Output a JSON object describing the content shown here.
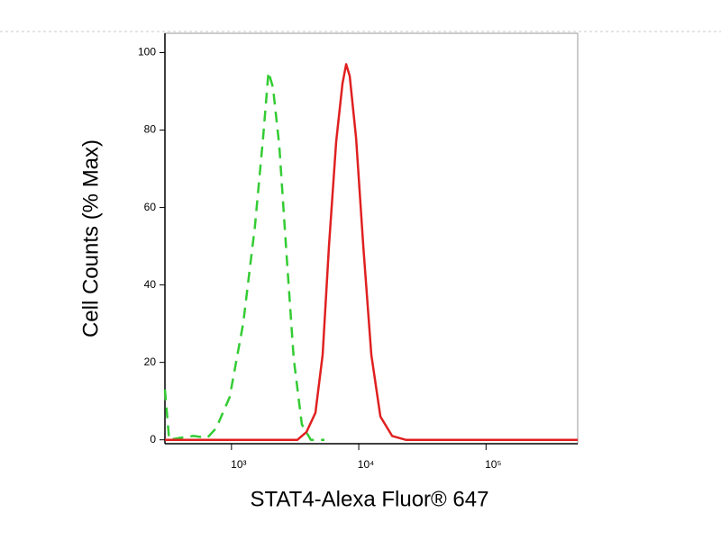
{
  "chart_data": {
    "type": "line",
    "xlabel": "STAT4-Alexa Fluor® 647",
    "ylabel": "Cell Counts (% Max)",
    "xscale": "log",
    "xlim": [
      300,
      525000
    ],
    "ylim": [
      -1,
      105
    ],
    "xticks": [
      {
        "value": 1000,
        "label": "10³"
      },
      {
        "value": 10000,
        "label": "10⁴"
      },
      {
        "value": 100000,
        "label": "10⁵"
      }
    ],
    "yticks": [
      0,
      20,
      40,
      60,
      80,
      100
    ],
    "series": [
      {
        "color": "#33cc33",
        "dashed": true,
        "x": [
          300,
          324,
          394,
          503,
          644,
          757,
          968,
          1236,
          1528,
          1770,
          1953,
          2120,
          2377,
          2708,
          3085,
          3572,
          4205,
          5375
        ],
        "values": [
          13,
          0,
          0.5,
          1,
          0.5,
          3,
          11,
          30,
          55,
          78,
          95,
          91,
          76,
          48,
          21,
          4,
          0,
          0
        ]
      },
      {
        "color": "#e02020",
        "dashed": false,
        "x": [
          300,
          3296,
          3880,
          4570,
          5200,
          5834,
          6650,
          7450,
          7960,
          8490,
          9520,
          10850,
          12560,
          14790,
          18290,
          23380,
          525000
        ],
        "values": [
          0,
          0,
          2,
          7,
          22,
          50,
          77,
          92,
          97,
          94,
          78,
          50,
          22,
          6,
          1,
          0,
          0
        ]
      }
    ]
  }
}
